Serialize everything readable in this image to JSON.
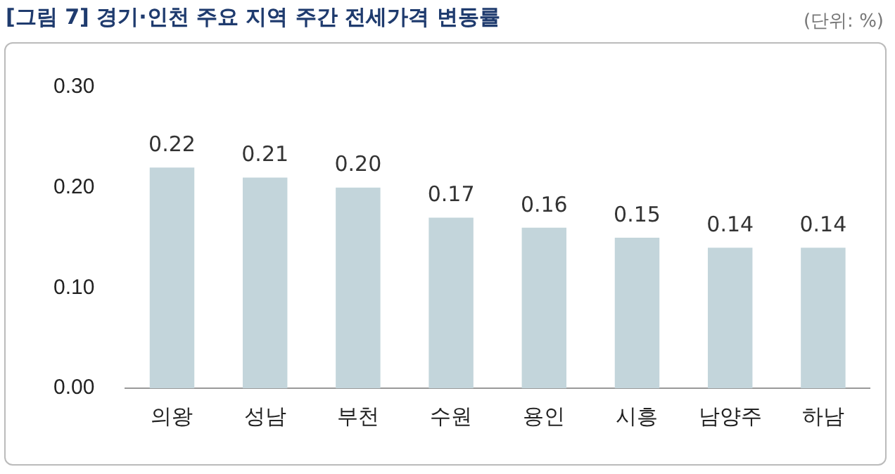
{
  "chart_data": {
    "type": "bar",
    "title": "[그림 7] 경기·인천 주요 지역 주간 전세가격 변동률",
    "annotations": [
      "(단위: %)"
    ],
    "categories": [
      "의왕",
      "성남",
      "부천",
      "수원",
      "용인",
      "시흥",
      "남양주",
      "하남"
    ],
    "values": [
      0.22,
      0.21,
      0.2,
      0.17,
      0.16,
      0.15,
      0.14,
      0.14
    ],
    "color": "#c3d5db",
    "ylim": [
      0,
      0.3
    ],
    "yticks": [
      {
        "value": 0,
        "label": "0.00"
      },
      {
        "value": 0.1,
        "label": "0.10"
      },
      {
        "value": 0.2,
        "label": "0.20"
      },
      {
        "value": 0.3,
        "label": "0.30"
      }
    ],
    "grid": false,
    "value_labels": [
      "0.22",
      "0.21",
      "0.20",
      "0.17",
      "0.16",
      "0.15",
      "0.14",
      "0.14"
    ]
  }
}
